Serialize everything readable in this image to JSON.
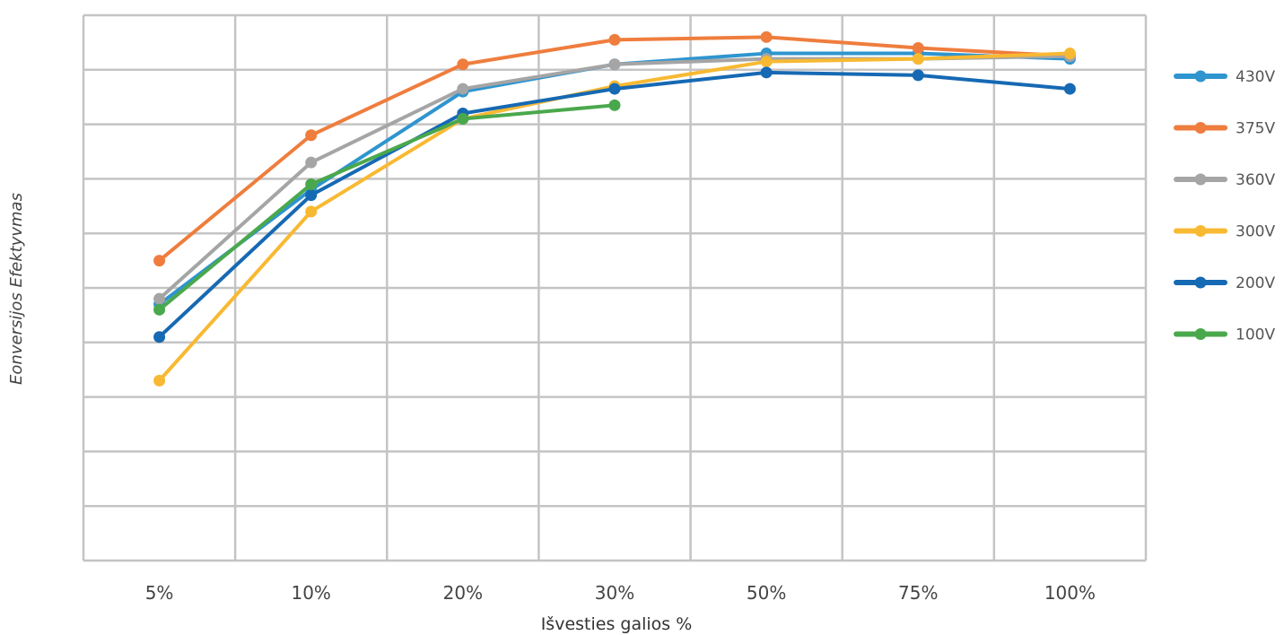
{
  "chart_data": {
    "type": "line",
    "title": "",
    "xlabel": "Išvesties galios %",
    "ylabel": "Eonversijos Efektyvmas",
    "categories": [
      "5%",
      "10%",
      "20%",
      "30%",
      "50%",
      "75%",
      "100%"
    ],
    "ylim": [
      0,
      10
    ],
    "grid": true,
    "legend_position": "right",
    "series": [
      {
        "name": "430V",
        "color": "#2e95cf",
        "values": [
          4.7,
          6.8,
          8.6,
          9.1,
          9.3,
          9.3,
          9.2
        ]
      },
      {
        "name": "375V",
        "color": "#ef7d3d",
        "values": [
          5.5,
          7.8,
          9.1,
          9.55,
          9.6,
          9.4,
          9.25
        ]
      },
      {
        "name": "360V",
        "color": "#a5a5a5",
        "values": [
          4.8,
          7.3,
          8.65,
          9.1,
          9.2,
          9.2,
          9.25
        ]
      },
      {
        "name": "300V",
        "color": "#f8b932",
        "values": [
          3.3,
          6.4,
          8.1,
          8.7,
          9.15,
          9.2,
          9.3
        ]
      },
      {
        "name": "200V",
        "color": "#1669b3",
        "values": [
          4.1,
          6.7,
          8.2,
          8.65,
          8.95,
          8.9,
          8.65
        ]
      },
      {
        "name": "100V",
        "color": "#4aa84c",
        "values": [
          4.6,
          6.9,
          8.1,
          8.35,
          null,
          null,
          null
        ]
      }
    ]
  },
  "legend_items": [
    "430V",
    "375V",
    "360V",
    "300V",
    "200V",
    "100V"
  ]
}
